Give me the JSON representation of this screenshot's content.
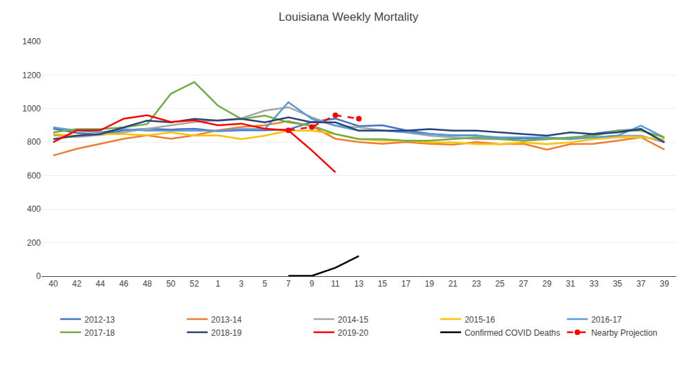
{
  "chart_data": {
    "type": "line",
    "title": "Louisiana Weekly Mortality",
    "categories": [
      "40",
      "42",
      "44",
      "46",
      "48",
      "50",
      "52",
      "1",
      "3",
      "5",
      "7",
      "9",
      "11",
      "13",
      "15",
      "17",
      "19",
      "21",
      "23",
      "25",
      "27",
      "29",
      "31",
      "33",
      "35",
      "37",
      "39"
    ],
    "ylim": [
      0,
      1400
    ],
    "yticks": [
      0,
      200,
      400,
      600,
      800,
      1000,
      1200,
      1400
    ],
    "grid": true,
    "legend": "bottom",
    "series": [
      {
        "name": "2012-13",
        "color": "#4472C4",
        "values": [
          880,
          855,
          845,
          870,
          880,
          875,
          880,
          865,
          870,
          870,
          875,
          920,
          940,
          895,
          900,
          870,
          850,
          840,
          840,
          820,
          822,
          820,
          818,
          850,
          868,
          878,
          800
        ]
      },
      {
        "name": "2013-14",
        "color": "#ED7D31",
        "values": [
          720,
          760,
          790,
          820,
          840,
          820,
          840,
          870,
          890,
          900,
          925,
          895,
          820,
          800,
          790,
          800,
          790,
          785,
          800,
          788,
          790,
          755,
          788,
          790,
          808,
          828,
          755
        ]
      },
      {
        "name": "2014-15",
        "color": "#A5A5A5",
        "values": [
          840,
          830,
          842,
          858,
          880,
          900,
          920,
          930,
          942,
          988,
          1008,
          948,
          898,
          888,
          870,
          858,
          838,
          828,
          818,
          818,
          808,
          818,
          820,
          828,
          838,
          838,
          798
        ]
      },
      {
        "name": "2015-16",
        "color": "#FFC000",
        "values": [
          848,
          838,
          848,
          848,
          840,
          858,
          838,
          840,
          818,
          838,
          868,
          868,
          848,
          818,
          808,
          808,
          798,
          798,
          788,
          788,
          798,
          788,
          798,
          818,
          828,
          828,
          818
        ]
      },
      {
        "name": "2016-17",
        "color": "#5B9BD5",
        "values": [
          888,
          868,
          858,
          878,
          868,
          868,
          868,
          868,
          878,
          878,
          1038,
          938,
          898,
          868,
          868,
          858,
          848,
          838,
          838,
          828,
          828,
          828,
          818,
          828,
          838,
          898,
          828
        ]
      },
      {
        "name": "2017-18",
        "color": "#70AD47",
        "values": [
          858,
          878,
          878,
          888,
          908,
          1088,
          1158,
          1018,
          938,
          958,
          918,
          898,
          848,
          818,
          818,
          808,
          808,
          818,
          828,
          818,
          808,
          818,
          828,
          838,
          868,
          868,
          828
        ]
      },
      {
        "name": "2018-19",
        "color": "#264478",
        "values": [
          818,
          838,
          848,
          888,
          928,
          918,
          938,
          928,
          938,
          918,
          948,
          918,
          918,
          868,
          868,
          868,
          878,
          868,
          868,
          858,
          848,
          838,
          858,
          848,
          858,
          878,
          798
        ]
      },
      {
        "name": "2019-20",
        "color": "#FF0000",
        "values": [
          800,
          870,
          870,
          940,
          960,
          920,
          930,
          900,
          910,
          880,
          870,
          750,
          620,
          null,
          null,
          null,
          null,
          null,
          null,
          null,
          null,
          null,
          null,
          null,
          null,
          null,
          null
        ]
      },
      {
        "name": "Confirmed COVID Deaths",
        "color": "#000000",
        "values": [
          null,
          null,
          null,
          null,
          null,
          null,
          null,
          null,
          null,
          null,
          2,
          2,
          50,
          120,
          null,
          null,
          null,
          null,
          null,
          null,
          null,
          null,
          null,
          null,
          null,
          null,
          null
        ]
      },
      {
        "name": "Nearby Projection",
        "color": "#FF0000",
        "line_style": "dashed",
        "marker": "circle",
        "values": [
          null,
          null,
          null,
          null,
          null,
          null,
          null,
          null,
          null,
          null,
          870,
          890,
          960,
          940,
          null,
          null,
          null,
          null,
          null,
          null,
          null,
          null,
          null,
          null,
          null,
          null,
          null
        ]
      }
    ]
  }
}
